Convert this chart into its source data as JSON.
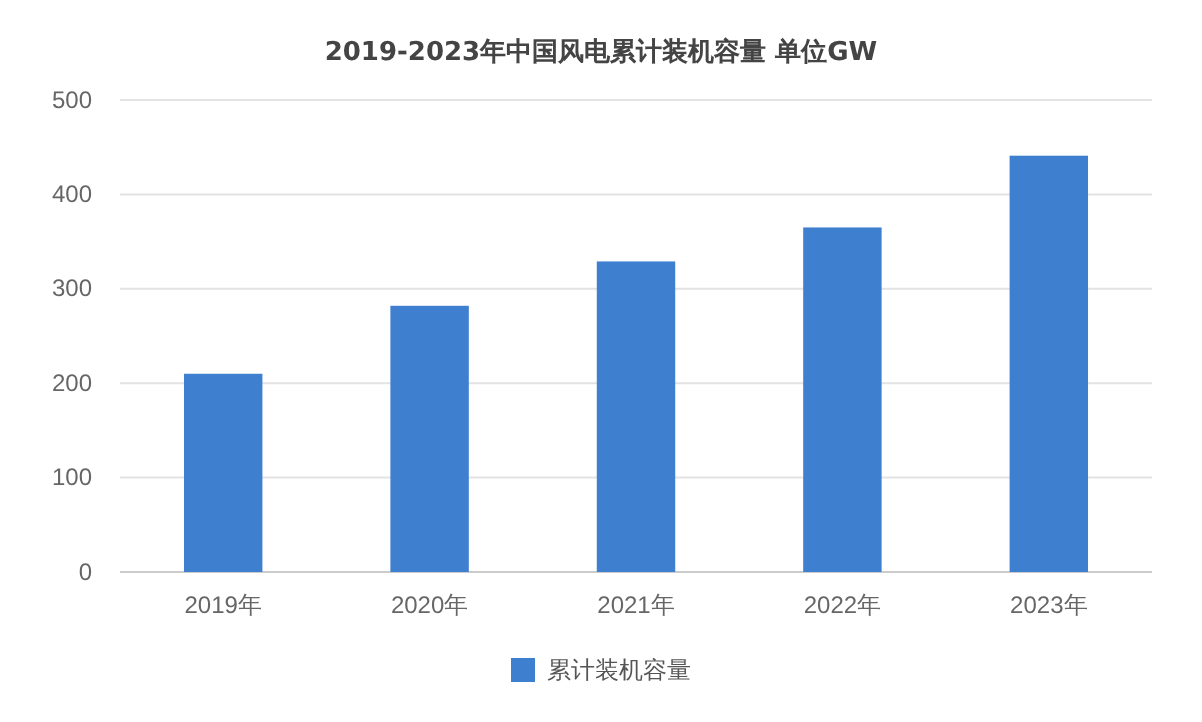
{
  "chart_data": {
    "type": "bar",
    "title": "2019-2023年中国风电累计装机容量 单位GW",
    "categories": [
      "2019年",
      "2020年",
      "2021年",
      "2022年",
      "2023年"
    ],
    "series": [
      {
        "name": "累计装机容量",
        "color": "#3f7fcf",
        "values": [
          210,
          282,
          329,
          365,
          441
        ]
      }
    ],
    "ylim": [
      0,
      500
    ],
    "yticks": [
      0,
      100,
      200,
      300,
      400,
      500
    ],
    "grid": "y",
    "legend": "bottom"
  }
}
